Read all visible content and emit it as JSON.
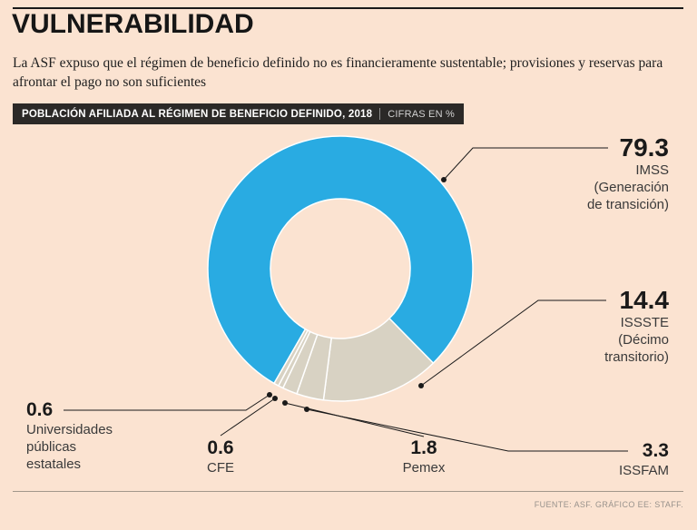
{
  "page": {
    "background": "#fbe3d1",
    "title": "VULNERABILIDAD",
    "subtitle": "La ASF expuso que el régimen de beneficio definido no es financieramente sustentable; provisiones y reservas para afrontar el pago no son suficientes",
    "source": "FUENTE: ASF. GRÁFICO EE: STAFF."
  },
  "header_bar": {
    "title": "POBLACIÓN AFILIADA AL RÉGIMEN DE BENEFICIO DEFINIDO, 2018",
    "units": "CIFRAS EN %"
  },
  "chart_data": {
    "type": "pie",
    "donut": true,
    "title": "POBLACIÓN AFILIADA AL RÉGIMEN DE BENEFICIO DEFINIDO, 2018",
    "units_label": "CIFRAS EN %",
    "start_angle_deg": 210,
    "colors": {
      "primary": "#29abe2",
      "secondary": "#d8d2c3"
    },
    "segments": [
      {
        "label": "IMSS (Generación de transición)",
        "value": 79.3,
        "color": "#29abe2"
      },
      {
        "label": "ISSSTE (Décimo transitorio)",
        "value": 14.4,
        "color": "#d8d2c3"
      },
      {
        "label": "ISSFAM",
        "value": 3.3,
        "color": "#d8d2c3"
      },
      {
        "label": "Pemex",
        "value": 1.8,
        "color": "#d8d2c3"
      },
      {
        "label": "CFE",
        "value": 0.6,
        "color": "#d8d2c3"
      },
      {
        "label": "Universidades públicas estatales",
        "value": 0.6,
        "color": "#d8d2c3"
      }
    ]
  },
  "callouts": {
    "imss": {
      "value": "79.3",
      "lines": [
        "IMSS",
        "(Generación",
        "de transición)"
      ]
    },
    "issste": {
      "value": "14.4",
      "lines": [
        "ISSSTE",
        "(Décimo",
        "transitorio)"
      ]
    },
    "issfam": {
      "value": "3.3",
      "lines": [
        "ISSFAM"
      ]
    },
    "pemex": {
      "value": "1.8",
      "lines": [
        "Pemex"
      ]
    },
    "cfe": {
      "value": "0.6",
      "lines": [
        "CFE"
      ]
    },
    "universidades": {
      "value": "0.6",
      "lines": [
        "Universidades",
        "públicas",
        "estatales"
      ]
    }
  }
}
